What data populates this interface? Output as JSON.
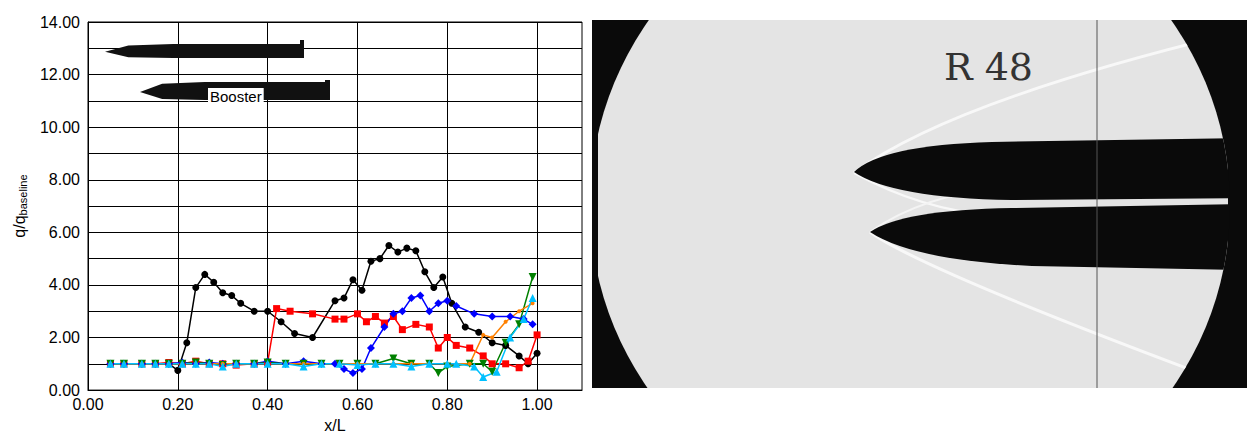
{
  "chart_data": {
    "type": "line",
    "xlabel": "x/L",
    "ylabel": {
      "text": "q/q",
      "subscript": "baseline"
    },
    "xlim": [
      0,
      1.1
    ],
    "xticks": [
      {
        "value": 0,
        "label": "0.00"
      },
      {
        "value": 0.2,
        "label": "0.20"
      },
      {
        "value": 0.4,
        "label": "0.40"
      },
      {
        "value": 0.6,
        "label": "0.60"
      },
      {
        "value": 0.8,
        "label": "0.80"
      },
      {
        "value": 1.0,
        "label": "1.00"
      }
    ],
    "ylim": [
      0,
      14
    ],
    "yticks": [
      {
        "value": 0,
        "label": "0.00"
      },
      {
        "value": 2,
        "label": "2.00"
      },
      {
        "value": 4,
        "label": "4.00"
      },
      {
        "value": 6,
        "label": "6.00"
      },
      {
        "value": 8,
        "label": "8.00"
      },
      {
        "value": 10,
        "label": "10.00"
      },
      {
        "value": 12,
        "label": "12.00"
      },
      {
        "value": 14,
        "label": "14.00"
      }
    ],
    "grid": true,
    "annotations": [
      "Booster",
      "R 48"
    ],
    "series": [
      {
        "color": "#000000",
        "marker": "circle",
        "x": [
          0.05,
          0.08,
          0.12,
          0.15,
          0.18,
          0.2,
          0.22,
          0.24,
          0.26,
          0.28,
          0.3,
          0.32,
          0.34,
          0.37,
          0.4,
          0.43,
          0.46,
          0.5,
          0.55,
          0.57,
          0.59,
          0.61,
          0.63,
          0.65,
          0.67,
          0.69,
          0.71,
          0.73,
          0.75,
          0.77,
          0.79,
          0.81,
          0.84,
          0.87,
          0.9,
          0.93,
          0.96,
          0.98,
          1.0
        ],
        "values": [
          1.0,
          1.0,
          1.0,
          1.0,
          1.0,
          0.75,
          1.8,
          3.9,
          4.4,
          4.1,
          3.7,
          3.6,
          3.3,
          3.0,
          3.0,
          2.6,
          2.15,
          2.0,
          3.4,
          3.5,
          4.2,
          3.8,
          4.9,
          5.0,
          5.5,
          5.25,
          5.4,
          5.3,
          4.5,
          3.9,
          4.3,
          3.3,
          2.4,
          2.2,
          1.8,
          1.7,
          1.3,
          1.0,
          1.4
        ]
      },
      {
        "color": "#ff0000",
        "marker": "square",
        "x": [
          0.05,
          0.08,
          0.12,
          0.15,
          0.18,
          0.21,
          0.24,
          0.27,
          0.3,
          0.33,
          0.37,
          0.4,
          0.42,
          0.45,
          0.5,
          0.55,
          0.57,
          0.6,
          0.62,
          0.64,
          0.66,
          0.68,
          0.7,
          0.73,
          0.76,
          0.78,
          0.8,
          0.82,
          0.85,
          0.88,
          0.9,
          0.93,
          0.96,
          0.98,
          1.0
        ],
        "values": [
          1.0,
          1.0,
          1.0,
          1.0,
          1.05,
          1.0,
          1.1,
          1.0,
          1.0,
          0.95,
          1.0,
          1.05,
          3.1,
          3.0,
          2.9,
          2.7,
          2.7,
          2.9,
          2.6,
          2.8,
          2.55,
          2.8,
          2.3,
          2.5,
          2.4,
          1.6,
          2.0,
          1.7,
          1.6,
          1.3,
          1.0,
          1.0,
          0.85,
          1.1,
          2.1
        ]
      },
      {
        "color": "#0000ff",
        "marker": "diamond",
        "x": [
          0.05,
          0.08,
          0.12,
          0.15,
          0.18,
          0.21,
          0.24,
          0.27,
          0.3,
          0.33,
          0.37,
          0.4,
          0.44,
          0.48,
          0.52,
          0.55,
          0.57,
          0.59,
          0.61,
          0.63,
          0.66,
          0.68,
          0.7,
          0.72,
          0.74,
          0.76,
          0.78,
          0.8,
          0.82,
          0.86,
          0.9,
          0.94,
          0.97,
          0.99
        ],
        "values": [
          1.0,
          1.0,
          1.0,
          1.0,
          1.0,
          1.05,
          1.0,
          1.05,
          1.0,
          1.0,
          1.0,
          1.1,
          1.0,
          1.1,
          1.0,
          1.0,
          0.8,
          0.65,
          0.8,
          1.6,
          2.4,
          2.9,
          3.0,
          3.5,
          3.6,
          3.0,
          3.3,
          3.4,
          3.2,
          2.9,
          2.8,
          2.8,
          2.7,
          2.5
        ]
      },
      {
        "color": "#008000",
        "marker": "triangle_down",
        "x": [
          0.05,
          0.08,
          0.12,
          0.15,
          0.18,
          0.21,
          0.24,
          0.27,
          0.3,
          0.33,
          0.37,
          0.4,
          0.44,
          0.48,
          0.52,
          0.56,
          0.6,
          0.64,
          0.68,
          0.72,
          0.76,
          0.78,
          0.8,
          0.85,
          0.88,
          0.9,
          0.93,
          0.96,
          0.99
        ],
        "values": [
          1.0,
          1.0,
          1.0,
          1.0,
          1.0,
          1.0,
          1.05,
          1.0,
          0.95,
          1.0,
          1.0,
          1.05,
          1.0,
          1.0,
          1.0,
          1.0,
          1.0,
          1.0,
          1.2,
          1.0,
          1.0,
          0.65,
          0.9,
          1.0,
          1.0,
          0.7,
          1.8,
          2.5,
          4.3
        ]
      },
      {
        "color": "#ff8000",
        "marker": "circle_small",
        "x": [
          0.05,
          0.08,
          0.12,
          0.15,
          0.18,
          0.21,
          0.24,
          0.27,
          0.3,
          0.33,
          0.37,
          0.4,
          0.44,
          0.48,
          0.52,
          0.56,
          0.6,
          0.64,
          0.68,
          0.72,
          0.76,
          0.8,
          0.85,
          0.88,
          0.9,
          0.93,
          0.96,
          0.99
        ],
        "values": [
          1.0,
          1.0,
          1.0,
          1.0,
          1.0,
          1.0,
          1.0,
          1.0,
          1.0,
          1.0,
          1.0,
          1.0,
          1.0,
          1.0,
          1.0,
          1.0,
          1.0,
          1.0,
          1.0,
          1.0,
          1.0,
          1.0,
          1.0,
          2.1,
          2.0,
          2.6,
          3.0,
          3.3
        ]
      },
      {
        "color": "#00c0ff",
        "marker": "triangle_up",
        "x": [
          0.05,
          0.08,
          0.12,
          0.15,
          0.18,
          0.21,
          0.24,
          0.27,
          0.3,
          0.33,
          0.37,
          0.4,
          0.44,
          0.48,
          0.52,
          0.56,
          0.6,
          0.64,
          0.68,
          0.72,
          0.76,
          0.8,
          0.82,
          0.86,
          0.88,
          0.91,
          0.94,
          0.97,
          0.99
        ],
        "values": [
          1.0,
          1.0,
          1.0,
          1.0,
          1.0,
          1.0,
          1.0,
          1.0,
          0.9,
          1.0,
          1.0,
          1.0,
          1.0,
          0.9,
          1.0,
          1.0,
          0.95,
          1.0,
          1.0,
          0.9,
          1.0,
          1.0,
          1.0,
          0.9,
          0.5,
          0.7,
          2.0,
          2.7,
          3.5
        ]
      }
    ]
  }
}
